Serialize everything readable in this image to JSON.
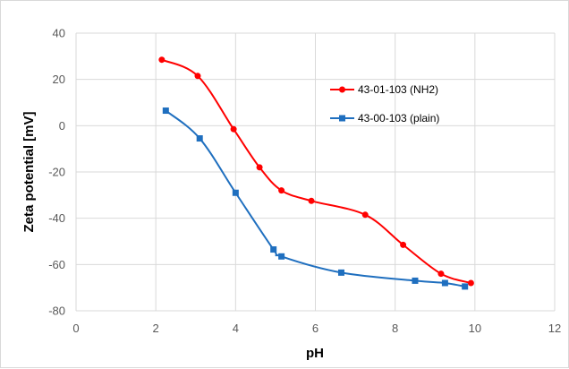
{
  "chart_data": {
    "type": "line",
    "title": "",
    "xlabel": "pH",
    "ylabel": "Zeta potential [mV]",
    "xlim": [
      0,
      12
    ],
    "ylim": [
      -80,
      40
    ],
    "x_ticks": [
      0,
      2,
      4,
      6,
      8,
      10,
      12
    ],
    "y_ticks": [
      -80,
      -60,
      -40,
      -20,
      0,
      20,
      40
    ],
    "grid": "vertical-and-horizontal",
    "legend_position": "right",
    "smooth_lines": true,
    "series": [
      {
        "name": "43-01-103 (NH2)",
        "color": "#ff0000",
        "marker": "circle",
        "x": [
          2.15,
          3.05,
          3.95,
          4.6,
          5.15,
          5.9,
          7.25,
          8.2,
          9.15,
          9.9
        ],
        "y": [
          28.5,
          21.5,
          -1.5,
          -18,
          -28,
          -32.5,
          -38.5,
          -51.5,
          -64,
          -68
        ]
      },
      {
        "name": "43-00-103 (plain)",
        "color": "#1f6fbf",
        "marker": "square",
        "x": [
          2.25,
          3.1,
          4.0,
          4.95,
          5.15,
          6.65,
          8.5,
          9.25,
          9.75
        ],
        "y": [
          6.5,
          -5.5,
          -29,
          -53.5,
          -56.5,
          -63.5,
          -67,
          -68,
          -69.5
        ]
      }
    ]
  }
}
